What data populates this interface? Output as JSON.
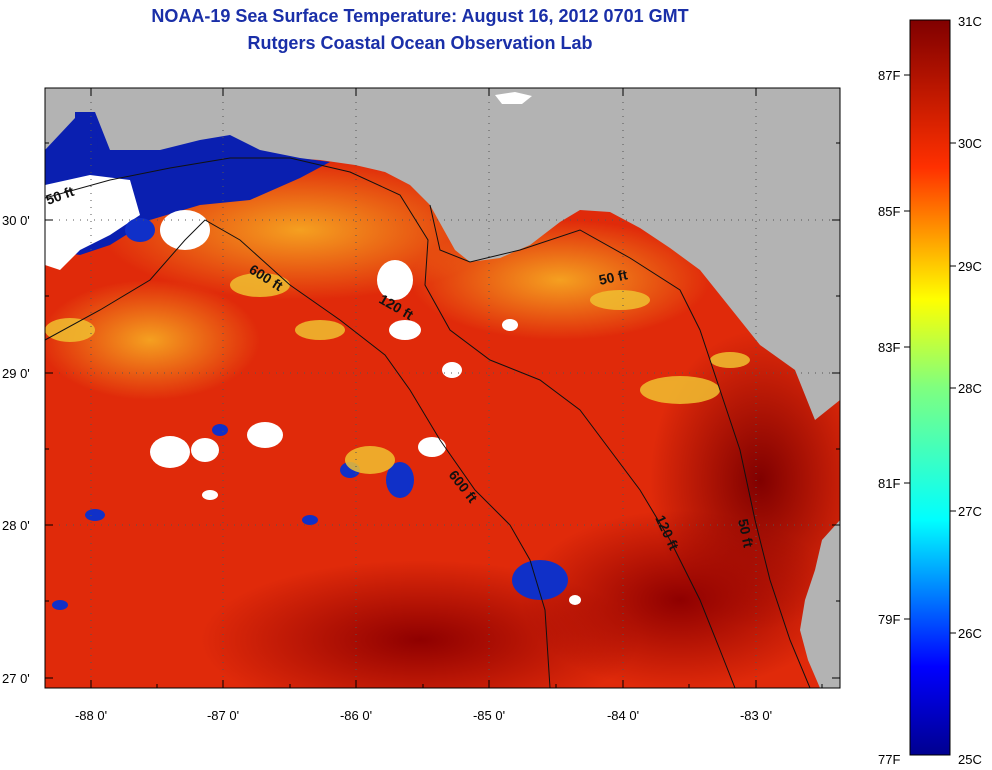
{
  "header": {
    "title": "NOAA-19 Sea Surface Temperature:  August 16, 2012 0701 GMT",
    "subtitle": "Rutgers Coastal Ocean Observation Lab"
  },
  "map": {
    "lat_labels": [
      "30 0'",
      "29 0'",
      "28 0'",
      "27 0'"
    ],
    "lon_labels": [
      "-88 0'",
      "-87 0'",
      "-86 0'",
      "-85 0'",
      "-84 0'",
      "-83 0'"
    ],
    "contours": {
      "west_50": "50 ft",
      "west_600": "600 ft",
      "mid_120": "120 ft",
      "east_50": "50 ft",
      "south_600": "600 ft",
      "south_120": "120 ft",
      "south_50": "50 ft"
    },
    "colors": {
      "land": "#b3b3b3",
      "warm_dark": "#8b0000",
      "warm": "#e8250a",
      "orange": "#f07820",
      "cool": "#0a1fb0",
      "cloud": "#ffffff"
    }
  },
  "colorbar": {
    "celsius": [
      "31C",
      "30C",
      "29C",
      "28C",
      "27C",
      "26C",
      "25C"
    ],
    "fahrenheit": [
      "87F",
      "85F",
      "83F",
      "81F",
      "79F",
      "77F"
    ],
    "min_c": 25,
    "max_c": 31
  }
}
